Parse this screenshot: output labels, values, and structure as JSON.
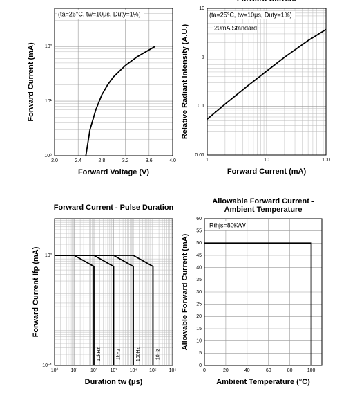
{
  "chart_data": [
    {
      "type": "line",
      "x_label": "Forward Voltage (V)",
      "y_label": "Forward Current (mA)",
      "annotations": [
        "(ta=25°C, tw=10μs, Duty=1%)"
      ],
      "xlim": [
        2,
        4
      ],
      "ylim": [
        1,
        500
      ],
      "yscale": "log",
      "grid": true,
      "xticks": [
        {
          "value": 2,
          "label": "2.0"
        },
        2.4,
        2.8,
        3.2,
        3.6,
        {
          "value": 4,
          "label": "4.0"
        }
      ],
      "yticks": [
        {
          "value": 1,
          "label": "10⁰"
        },
        {
          "value": 10,
          "label": "10¹"
        },
        {
          "value": 100,
          "label": "10²"
        }
      ],
      "color": "#000000",
      "x": [
        2.53,
        2.6,
        2.7,
        2.8,
        2.9,
        3.0,
        3.2,
        3.4,
        3.7
      ],
      "values": [
        1,
        3,
        7,
        13,
        20,
        28,
        45,
        65,
        100
      ]
    },
    {
      "type": "line",
      "title": "Forward Current",
      "x_label": "Forward Current (mA)",
      "y_label": "Relative Radiant Intensity (A.U.)",
      "annotations": [
        "(ta=25°C, tw=10μs, Duty=1%)",
        "20mA Standard"
      ],
      "xlim": [
        1,
        100
      ],
      "ylim": [
        0.01,
        10
      ],
      "xscale": "log",
      "yscale": "log",
      "grid": true,
      "xticks": [
        1,
        10,
        100
      ],
      "yticks": [
        0.01,
        0.1,
        1,
        10
      ],
      "color": "#000000",
      "x": [
        1,
        2,
        5,
        10,
        20,
        50,
        100
      ],
      "values": [
        0.054,
        0.11,
        0.27,
        0.52,
        1,
        2.2,
        3.7
      ]
    },
    {
      "type": "line",
      "title": "Forward Current - Pulse Duration",
      "x_label": "Duration tw (μs)",
      "y_label": "Forward Current Ifp (mA)",
      "xlim": [
        1,
        1000000
      ],
      "ylim": [
        0.1,
        1000
      ],
      "xscale": "log",
      "yscale": "log",
      "grid": true,
      "xticks": [
        {
          "value": 1,
          "label": "10⁰"
        },
        {
          "value": 10,
          "label": "10¹"
        },
        {
          "value": 100,
          "label": "10²"
        },
        {
          "value": 1000,
          "label": "10³"
        },
        {
          "value": 10000,
          "label": "10⁴"
        },
        {
          "value": 100000,
          "label": "10⁵"
        },
        {
          "value": 1000000,
          "label": "10⁶"
        }
      ],
      "yticks": [
        {
          "value": 0.1,
          "label": "10⁻¹"
        },
        {
          "value": 100,
          "label": "10²"
        }
      ],
      "series": [
        {
          "name": "10kHz",
          "color": "#000000",
          "x": [
            1,
            10,
            100,
            100
          ],
          "values": [
            100,
            100,
            50,
            0.1
          ]
        },
        {
          "name": "1kHz",
          "color": "#000000",
          "x": [
            1,
            100,
            1000,
            1000
          ],
          "values": [
            100,
            100,
            50,
            0.1
          ]
        },
        {
          "name": "100Hz",
          "color": "#000000",
          "x": [
            1,
            1000,
            10000,
            10000
          ],
          "values": [
            100,
            100,
            50,
            0.1
          ]
        },
        {
          "name": "10Hz",
          "color": "#000000",
          "x": [
            1,
            10000,
            100000,
            100000
          ],
          "values": [
            100,
            100,
            50,
            0.1
          ]
        }
      ]
    },
    {
      "type": "line",
      "title": [
        "Allowable Forward Current -",
        "Ambient Temperature"
      ],
      "x_label": "Ambient Temperature (°C)",
      "y_label": "Allowable Forward Current (mA)",
      "annotations": [
        "Rthjs=80K/W"
      ],
      "xlim": [
        0,
        110
      ],
      "ylim": [
        0,
        60
      ],
      "grid": true,
      "xticks": [
        0,
        20,
        40,
        60,
        80,
        100
      ],
      "yticks": [
        0,
        5,
        10,
        15,
        20,
        25,
        30,
        35,
        40,
        45,
        50,
        55,
        60
      ],
      "color": "#000000",
      "x": [
        0,
        100,
        100
      ],
      "values": [
        50,
        50,
        0
      ]
    }
  ]
}
